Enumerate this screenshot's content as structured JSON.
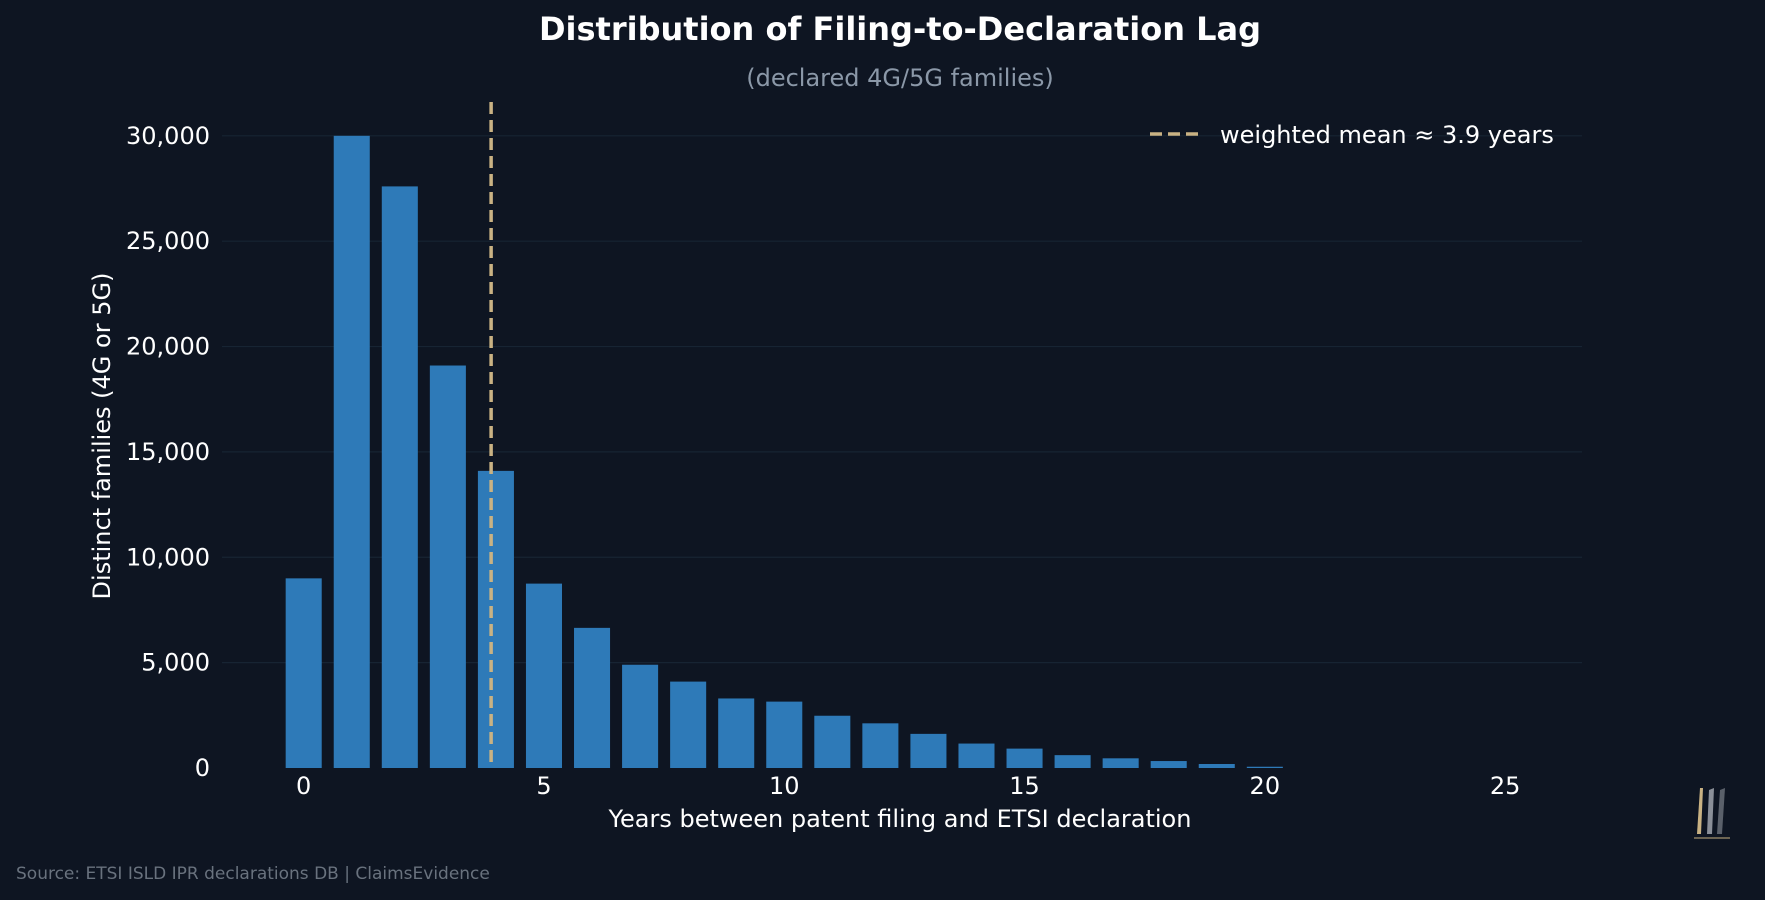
{
  "colors": {
    "background": "#0e1522",
    "bar": "#2e7ab8",
    "mean_line": "#c9b283",
    "grid": "#172433",
    "text": "#ffffff",
    "subtitle": "#8b98a8",
    "source": "#69727e"
  },
  "source": "Source: ETSI ISLD IPR declarations DB | ClaimsEvidence",
  "logo_icon": "brushstroke-logo",
  "chart_data": {
    "type": "bar",
    "title": "Distribution of Filing-to-Declaration Lag",
    "subtitle": "(declared 4G/5G families)",
    "xlabel": "Years between patent filing and ETSI declaration",
    "ylabel": "Distinct families (4G or 5G)",
    "x": [
      0,
      1,
      2,
      3,
      4,
      5,
      6,
      7,
      8,
      9,
      10,
      11,
      12,
      13,
      14,
      15,
      16,
      17,
      18,
      19,
      20
    ],
    "values": [
      9000,
      30000,
      27600,
      19100,
      14100,
      8750,
      6650,
      4900,
      4100,
      3300,
      3150,
      2480,
      2120,
      1620,
      1160,
      920,
      610,
      460,
      330,
      190,
      60
    ],
    "xlim": [
      -1.7,
      26.6
    ],
    "ylim": [
      0,
      31700
    ],
    "xticks": [
      0,
      5,
      10,
      15,
      20,
      25
    ],
    "xtick_labels": [
      "0",
      "5",
      "10",
      "15",
      "20",
      "25"
    ],
    "yticks": [
      0,
      5000,
      10000,
      15000,
      20000,
      25000,
      30000
    ],
    "ytick_labels": [
      "0",
      "5,000",
      "10,000",
      "15,000",
      "20,000",
      "25,000",
      "30,000"
    ],
    "mean_line": {
      "x": 3.9,
      "label": "weighted mean ≈ 3.9 years"
    },
    "legend_position": "top-right",
    "grid": true
  }
}
